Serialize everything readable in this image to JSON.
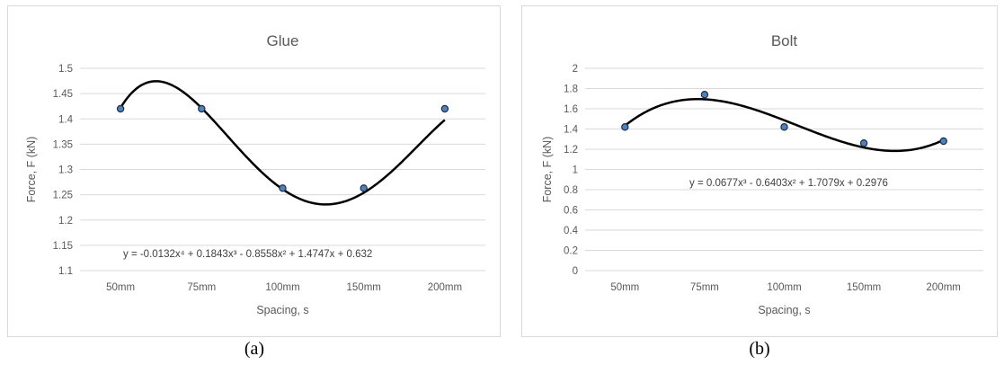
{
  "chart_data": [
    {
      "type": "scatter",
      "title": "Glue",
      "xlabel": "Spacing, s",
      "ylabel": "Force, F (kN)",
      "categories": [
        "50mm",
        "75mm",
        "100mm",
        "150mm",
        "200mm"
      ],
      "values": [
        1.42,
        1.42,
        1.263,
        1.263,
        1.42
      ],
      "ylim": [
        1.1,
        1.5
      ],
      "yticks": [
        "1.1",
        "1.15",
        "1.2",
        "1.25",
        "1.3",
        "1.35",
        "1.4",
        "1.45",
        "1.5"
      ],
      "grid": true,
      "trendline": {
        "type": "polynomial",
        "coefficients": [
          0.632,
          1.4747,
          -0.8558,
          0.1843,
          -0.0132
        ],
        "equation": "y = -0.0132x⁴ + 0.1843x³ - 0.8558x² + 1.4747x + 0.632"
      }
    },
    {
      "type": "scatter",
      "title": "Bolt",
      "xlabel": "Spacing, s",
      "ylabel": "Force, F (kN)",
      "categories": [
        "50mm",
        "75mm",
        "100mm",
        "150mm",
        "200mm"
      ],
      "values": [
        1.42,
        1.74,
        1.42,
        1.26,
        1.28
      ],
      "ylim": [
        0,
        2
      ],
      "yticks": [
        "0",
        "0.2",
        "0.4",
        "0.6",
        "0.8",
        "1",
        "1.2",
        "1.4",
        "1.6",
        "1.8",
        "2"
      ],
      "grid": true,
      "trendline": {
        "type": "polynomial",
        "coefficients": [
          0.2976,
          1.7079,
          -0.6403,
          0.0677
        ],
        "equation": "y = 0.0677x³ - 0.6403x² + 1.7079x + 0.2976"
      }
    }
  ],
  "captions": [
    "(a)",
    "(b)"
  ],
  "colors": {
    "marker_fill": "#4f81bd",
    "marker_stroke": "#1f2d44",
    "trendline": "#000000",
    "grid": "#d9d9d9"
  }
}
